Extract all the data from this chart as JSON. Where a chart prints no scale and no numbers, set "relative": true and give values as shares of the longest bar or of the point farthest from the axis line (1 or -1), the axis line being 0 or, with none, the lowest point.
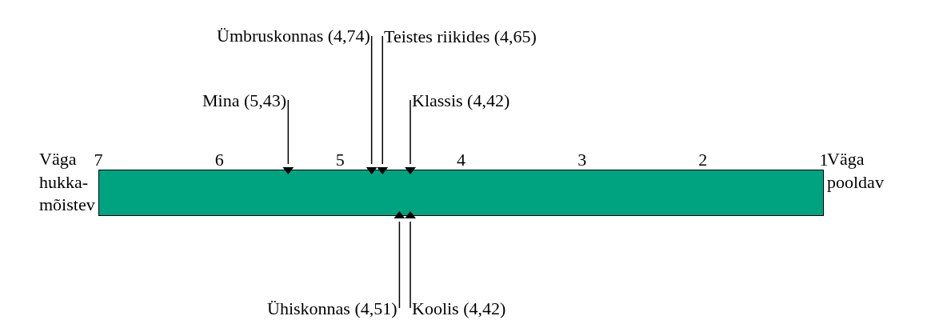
{
  "chart_data": {
    "type": "scatter",
    "relative": true,
    "xlim": [
      7,
      1
    ],
    "xticks": [
      7,
      6,
      5,
      4,
      3,
      2,
      1
    ],
    "marker": "triangle",
    "series": [
      {
        "color": "#000000",
        "x": [
          5.43,
          4.74,
          4.65,
          4.42,
          4.51,
          4.42
        ],
        "values": [
          1,
          1,
          1,
          1,
          0,
          0
        ]
      }
    ],
    "annotations": [
      {
        "text": "Mina (5,43)",
        "x": 5.43,
        "y": 1
      },
      {
        "text": "Ümbruskonnas (4,74)",
        "x": 4.74,
        "y": 1
      },
      {
        "text": "Teistes riikides (4,65)",
        "x": 4.65,
        "y": 1
      },
      {
        "text": "Klassis (4,42)",
        "x": 4.42,
        "y": 1
      },
      {
        "text": "Ühiskonnas (4,51)",
        "x": 4.51,
        "y": 0
      },
      {
        "text": "Koolis (4,42)",
        "x": 4.42,
        "y": 0
      },
      "Väga hukka-mõistev",
      "Väga pooldav"
    ]
  }
}
